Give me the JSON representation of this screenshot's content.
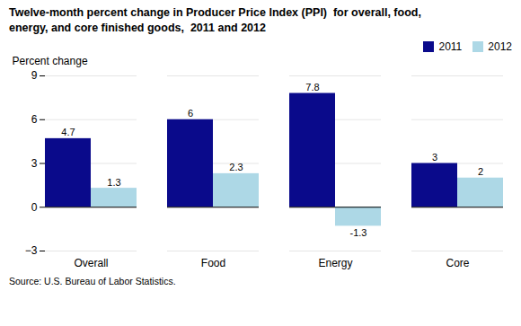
{
  "chart_data": {
    "type": "bar",
    "title": "Twelve-month percent change in Producer Price Index (PPI)  for overall, food,\nenergy, and core finished goods,  2011 and 2012",
    "ylabel": "Percent change",
    "source": "Source: U.S. Bureau of Labor Statistics.",
    "categories": [
      "Overall",
      "Food",
      "Energy",
      "Core"
    ],
    "series": [
      {
        "name": "2011",
        "color": "#0A0A8B",
        "values": [
          4.7,
          6.0,
          7.8,
          3.0
        ]
      },
      {
        "name": "2012",
        "color": "#ADD8E6",
        "values": [
          1.3,
          2.3,
          -1.3,
          2.0
        ]
      }
    ],
    "ylim": [
      -3,
      9
    ],
    "yticks": [
      -3,
      0,
      3,
      6,
      9
    ],
    "grid": true,
    "legend": "upper right",
    "data_labels": true
  }
}
